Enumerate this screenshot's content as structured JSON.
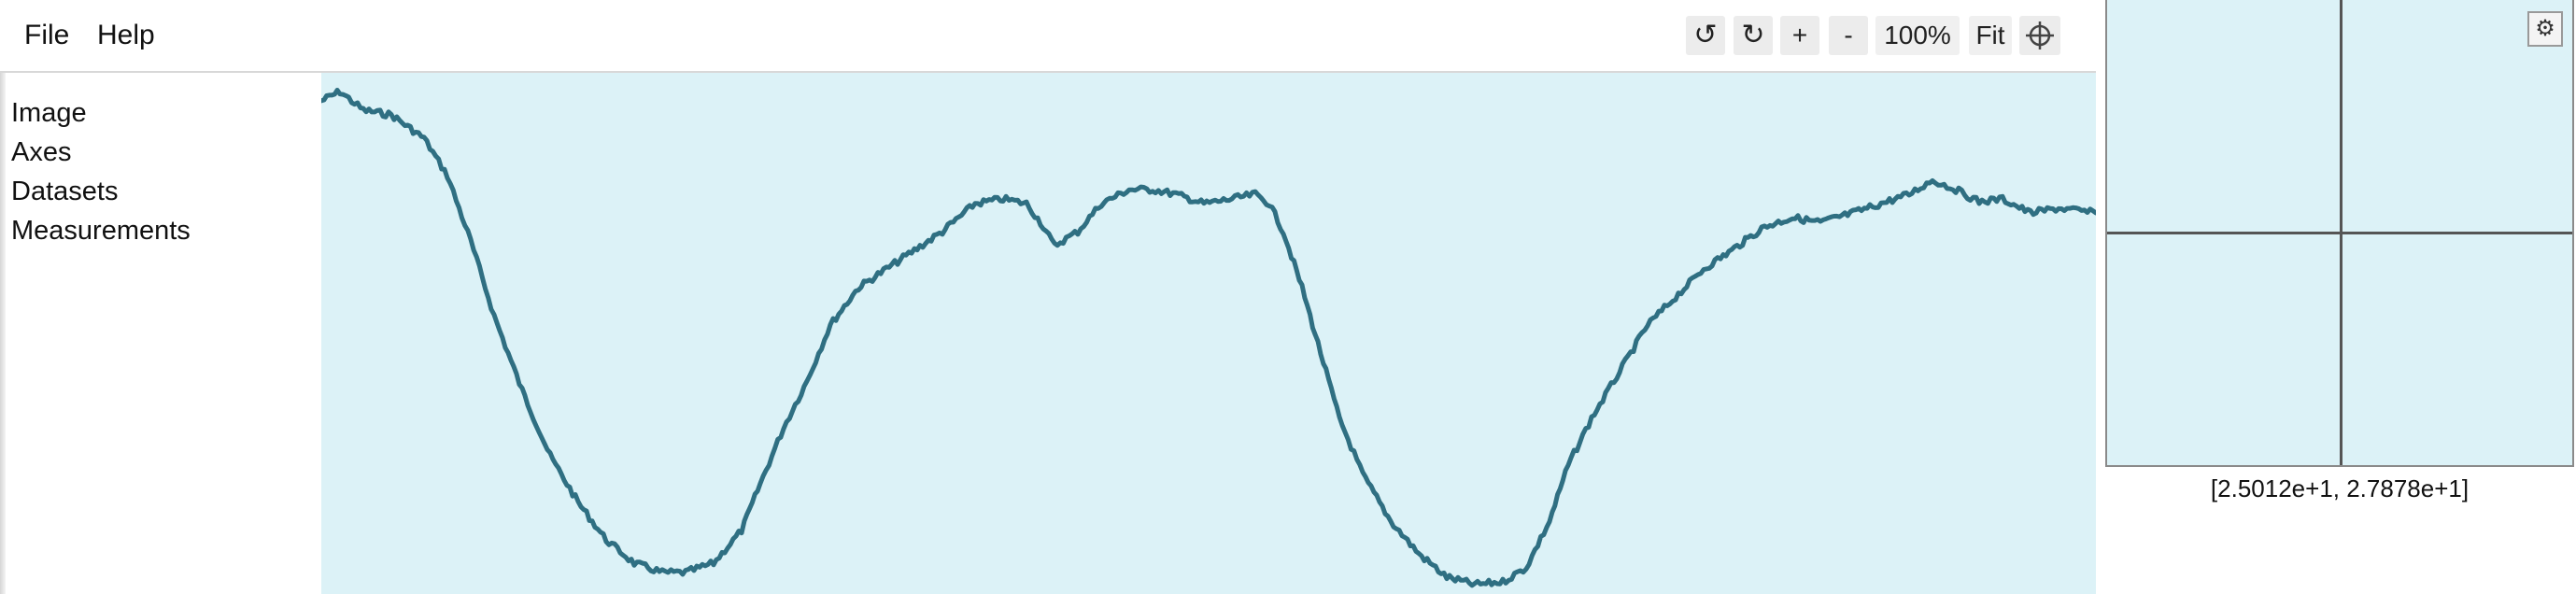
{
  "menu": {
    "file": "File",
    "help": "Help"
  },
  "toolbar": {
    "undo": "↺",
    "redo": "↻",
    "zoom_in": "+",
    "zoom_out": "-",
    "zoom_level": "100%",
    "fit": "Fit",
    "crosshair_icon": "crosshair-icon"
  },
  "sidebar": {
    "items": [
      {
        "label": "Image"
      },
      {
        "label": "Axes"
      },
      {
        "label": "Datasets"
      },
      {
        "label": "Measurements"
      }
    ]
  },
  "zoom_panel": {
    "settings_icon": "⚙",
    "coordinates": "[2.5012e+1, 2.7878e+1]"
  },
  "colors": {
    "plot_background": "#dcf2f7",
    "trace": "#2f6f82"
  }
}
